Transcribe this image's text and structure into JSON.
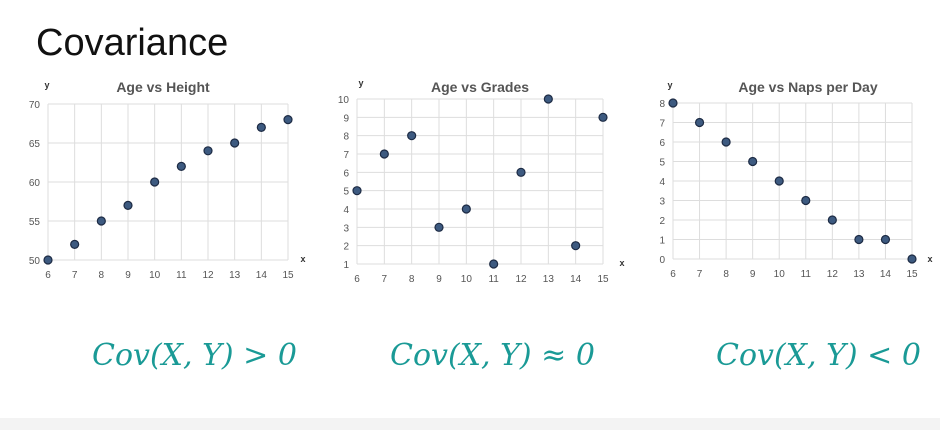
{
  "slide": {
    "title": "Covariance"
  },
  "colors": {
    "formula": "#1a9a96",
    "point_fill": "#3d5a80",
    "point_stroke": "#1d2b44",
    "grid": "#dddddd"
  },
  "chart_data": [
    {
      "type": "scatter",
      "title": "Age vs Height",
      "xlabel": "x",
      "ylabel": "y",
      "xlim": [
        6,
        15
      ],
      "ylim": [
        50,
        70
      ],
      "x_ticks": [
        6,
        7,
        8,
        9,
        10,
        11,
        12,
        13,
        14,
        15
      ],
      "y_ticks": [
        50,
        55,
        60,
        65,
        70
      ],
      "grid": true,
      "x": [
        6,
        7,
        8,
        9,
        10,
        11,
        12,
        13,
        14,
        15
      ],
      "y": [
        50,
        52,
        55,
        57,
        60,
        62,
        64,
        65,
        67,
        68
      ],
      "formula": "Cov(X, Y) > 0"
    },
    {
      "type": "scatter",
      "title": "Age vs Grades",
      "xlabel": "x",
      "ylabel": "y",
      "xlim": [
        6,
        15
      ],
      "ylim": [
        1,
        10
      ],
      "x_ticks": [
        6,
        7,
        8,
        9,
        10,
        11,
        12,
        13,
        14,
        15
      ],
      "y_ticks": [
        1,
        2,
        3,
        4,
        5,
        6,
        7,
        8,
        9,
        10
      ],
      "grid": true,
      "x": [
        6,
        7,
        8,
        9,
        10,
        11,
        12,
        13,
        14,
        15
      ],
      "y": [
        5,
        7,
        8,
        3,
        4,
        1,
        6,
        10,
        2,
        9
      ],
      "formula": "Cov(X, Y) ≈ 0"
    },
    {
      "type": "scatter",
      "title": "Age vs Naps per Day",
      "xlabel": "x",
      "ylabel": "y",
      "xlim": [
        6,
        15
      ],
      "ylim": [
        0,
        8
      ],
      "x_ticks": [
        6,
        7,
        8,
        9,
        10,
        11,
        12,
        13,
        14,
        15
      ],
      "y_ticks": [
        0,
        1,
        2,
        3,
        4,
        5,
        6,
        7,
        8
      ],
      "grid": true,
      "x": [
        6,
        7,
        8,
        9,
        10,
        11,
        12,
        13,
        14,
        15
      ],
      "y": [
        8,
        7,
        6,
        5,
        4,
        3,
        2,
        1,
        1,
        0
      ],
      "formula": "Cov(X, Y) < 0"
    }
  ]
}
